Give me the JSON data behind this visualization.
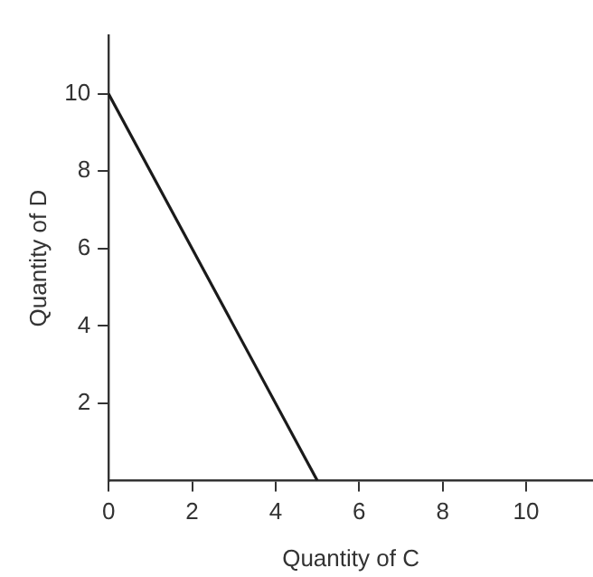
{
  "chart_data": {
    "type": "line",
    "xlabel": "Quantity of C",
    "ylabel": "Quantity of D",
    "x": [
      0,
      5
    ],
    "series": [
      {
        "color": "#1a1a1a",
        "values": [
          10,
          0
        ]
      }
    ],
    "xlim": [
      0,
      11.6
    ],
    "ylim": [
      0,
      11.5
    ],
    "xticks": [
      0,
      2,
      4,
      6,
      8,
      10
    ],
    "yticks": [
      2,
      4,
      6,
      8,
      10
    ],
    "grid": false,
    "legend": false,
    "marker": "none",
    "line_style": "solid"
  }
}
